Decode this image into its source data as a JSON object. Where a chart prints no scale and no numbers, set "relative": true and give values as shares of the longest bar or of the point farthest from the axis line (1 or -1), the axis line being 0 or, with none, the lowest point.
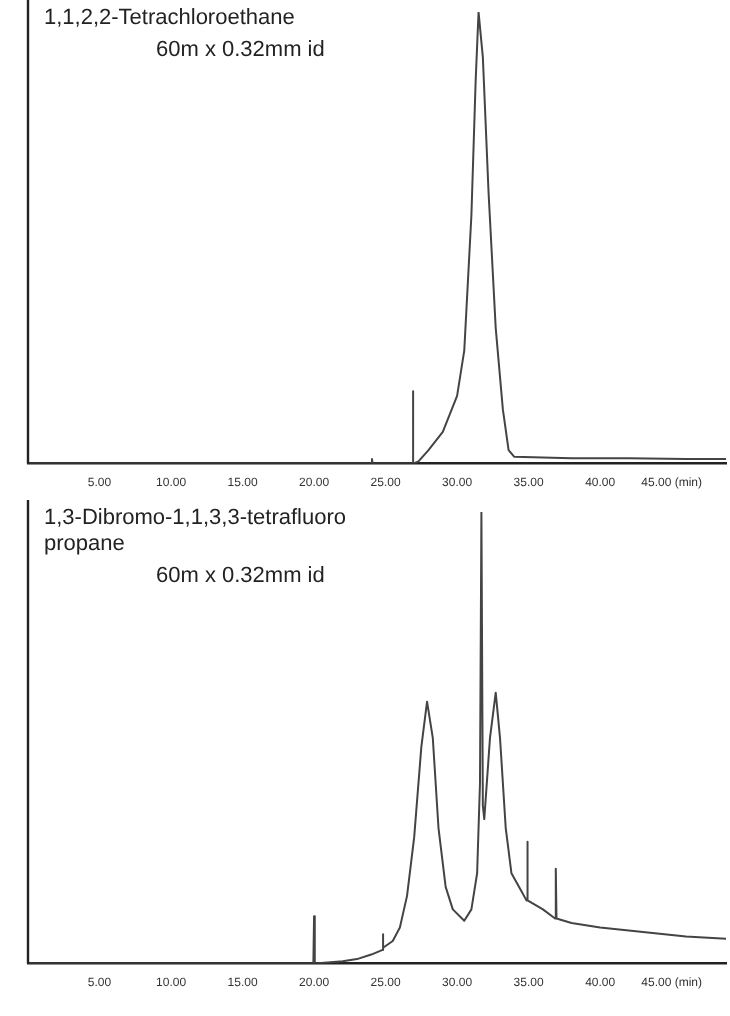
{
  "chart_data": [
    {
      "type": "line",
      "title": "1,1,2,2-Tetrachloroethane",
      "annotations": [
        "60m x 0.32mm id"
      ],
      "relative": true,
      "xlim": [
        0,
        48.8
      ],
      "xticks": [
        {
          "value": 5,
          "label": "5.00"
        },
        {
          "value": 10,
          "label": "10.00"
        },
        {
          "value": 15,
          "label": "15.00"
        },
        {
          "value": 20,
          "label": "20.00"
        },
        {
          "value": 25,
          "label": "25.00"
        },
        {
          "value": 30,
          "label": "30.00"
        },
        {
          "value": 35,
          "label": "35.00"
        },
        {
          "value": 40,
          "label": "40.00"
        },
        {
          "value": 45,
          "label": "45.00 (min)"
        }
      ],
      "grid": false,
      "legend": false,
      "marker": "none",
      "line_style": "solid",
      "series": [
        {
          "color": "#444444",
          "x": [
            0,
            24,
            24.05,
            24.1,
            26.85,
            26.9,
            26.95,
            27.3,
            28,
            29,
            30,
            30.5,
            31,
            31.3,
            31.5,
            31.8,
            32.2,
            32.7,
            33.2,
            33.6,
            34,
            38,
            42,
            46,
            48.8
          ],
          "values": [
            0,
            0,
            0.01,
            0,
            0,
            0.16,
            0,
            0.005,
            0.03,
            0.07,
            0.15,
            0.25,
            0.55,
            0.85,
            1,
            0.9,
            0.6,
            0.3,
            0.12,
            0.03,
            0.015,
            0.012,
            0.012,
            0.01,
            0.01
          ]
        }
      ]
    },
    {
      "type": "line",
      "title": "1,3-Dibromo-1,1,3,3-tetrafluoro propane",
      "annotations": [
        "60m x 0.32mm id"
      ],
      "relative": true,
      "xlim": [
        0,
        48.8
      ],
      "xticks": [
        {
          "value": 5,
          "label": "5.00"
        },
        {
          "value": 10,
          "label": "10.00"
        },
        {
          "value": 15,
          "label": "15.00"
        },
        {
          "value": 20,
          "label": "20.00"
        },
        {
          "value": 25,
          "label": "25.00"
        },
        {
          "value": 30,
          "label": "30.00"
        },
        {
          "value": 35,
          "label": "35.00"
        },
        {
          "value": 40,
          "label": "40.00"
        },
        {
          "value": 45,
          "label": "45.00 (min)"
        }
      ],
      "grid": false,
      "legend": false,
      "marker": "none",
      "line_style": "solid",
      "series": [
        {
          "color": "#444444",
          "x": [
            0,
            19.95,
            20.0,
            20.05,
            22,
            23,
            24,
            24.75,
            24.8,
            24.85,
            25.5,
            26,
            26.5,
            27,
            27.5,
            27.9,
            28.3,
            28.7,
            29.2,
            29.7,
            30.5,
            31,
            31.4,
            31.6,
            31.7,
            31.8,
            31.9,
            32.3,
            32.7,
            33,
            33.4,
            33.8,
            34.5,
            34.85,
            34.9,
            34.95,
            36,
            36.85,
            36.9,
            36.95,
            38,
            40,
            43,
            46,
            48.8
          ],
          "values": [
            0,
            0,
            0.105,
            0,
            0.005,
            0.01,
            0.02,
            0.03,
            0.065,
            0.035,
            0.05,
            0.08,
            0.15,
            0.28,
            0.48,
            0.58,
            0.5,
            0.3,
            0.17,
            0.12,
            0.095,
            0.12,
            0.2,
            0.4,
            1,
            0.35,
            0.32,
            0.5,
            0.6,
            0.5,
            0.3,
            0.2,
            0.16,
            0.14,
            0.27,
            0.14,
            0.12,
            0.1,
            0.21,
            0.1,
            0.09,
            0.08,
            0.07,
            0.06,
            0.055
          ]
        }
      ]
    }
  ]
}
